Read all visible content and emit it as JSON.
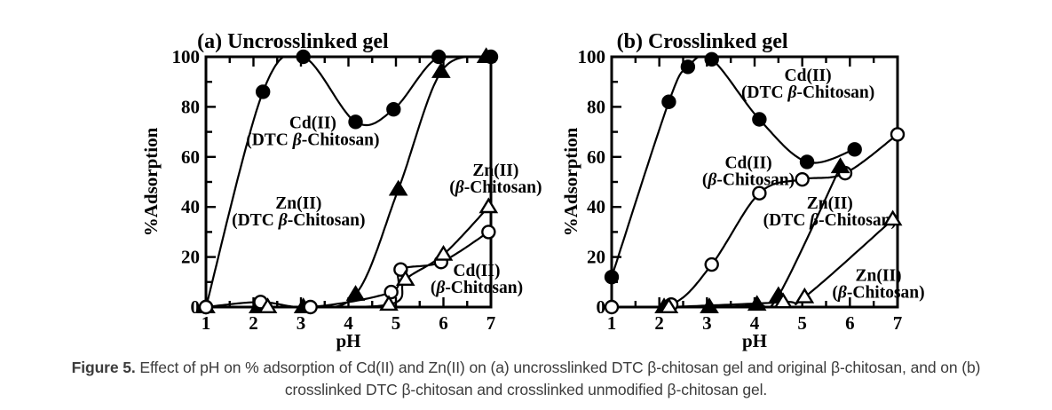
{
  "colors": {
    "ink": "#000000",
    "caption_text": "#3c3c3c",
    "background": "#ffffff"
  },
  "caption": {
    "bold": "Figure 5.",
    "line1_rest": " Effect of pH on % adsorption of Cd(II) and Zn(II) on (a) uncrosslinked DTC β-chitosan gel and original β-chitosan, and on (b)",
    "line2": "crosslinked DTC β-chitosan and crosslinked unmodified β-chitosan gel."
  },
  "chart_data": [
    {
      "type": "line",
      "title": "(a) Uncrosslinked gel",
      "xlabel": "pH",
      "ylabel": "%Adsorption",
      "xlim": [
        1,
        7
      ],
      "ylim": [
        0,
        100
      ],
      "xticks": [
        1,
        2,
        3,
        4,
        5,
        6,
        7
      ],
      "yticks": [
        0,
        20,
        40,
        60,
        80,
        100
      ],
      "xminor": 0.5,
      "yminor": 10,
      "grid": false,
      "legend": "inline-annotations",
      "series": [
        {
          "name": "Cd(II) (DTC β-Chitosan)",
          "marker": "filled-circle",
          "points": [
            [
              1,
              0
            ],
            [
              2.2,
              86
            ],
            [
              3.05,
              100
            ],
            [
              4.15,
              74
            ],
            [
              4.95,
              79
            ],
            [
              5.9,
              100
            ],
            [
              7,
              100
            ]
          ]
        },
        {
          "name": "Zn(II) (DTC β-Chitosan)",
          "marker": "filled-triangle",
          "points": [
            [
              1,
              0
            ],
            [
              2.1,
              0
            ],
            [
              3.05,
              0
            ],
            [
              4.15,
              5
            ],
            [
              5.05,
              47
            ],
            [
              5.95,
              94
            ],
            [
              6.9,
              100
            ]
          ]
        },
        {
          "name": "Cd(II) (β-Chitosan)",
          "marker": "open-circle",
          "points": [
            [
              1,
              0
            ],
            [
              2.15,
              2
            ],
            [
              3.2,
              0
            ],
            [
              4.9,
              6
            ],
            [
              5.1,
              15
            ],
            [
              5.95,
              18
            ],
            [
              6.95,
              30
            ]
          ]
        },
        {
          "name": "Zn(II) (β-Chitosan)",
          "marker": "open-triangle",
          "points": [
            [
              2.3,
              0
            ],
            [
              4.85,
              1
            ],
            [
              5.2,
              11
            ],
            [
              6,
              21
            ],
            [
              6.95,
              40
            ]
          ]
        }
      ],
      "annotations": [
        {
          "lines": [
            "Cd(II)",
            "(DTC β-Chitosan)"
          ],
          "x": 3.25,
          "y": 70
        },
        {
          "lines": [
            "Zn(II)",
            "(DTC β-Chitosan)"
          ],
          "x": 2.95,
          "y": 38
        },
        {
          "lines": [
            "Zn(II)",
            "(β-Chitosan)"
          ],
          "x": 7.1,
          "y": 51
        },
        {
          "lines": [
            "Cd(II)",
            "(β-Chitosan)"
          ],
          "x": 6.7,
          "y": 11
        }
      ]
    },
    {
      "type": "line",
      "title": "(b) Crosslinked gel",
      "xlabel": "pH",
      "ylabel": "%Adsorption",
      "xlim": [
        1,
        7
      ],
      "ylim": [
        0,
        100
      ],
      "xticks": [
        1,
        2,
        3,
        4,
        5,
        6,
        7
      ],
      "yticks": [
        0,
        20,
        40,
        60,
        80,
        100
      ],
      "xminor": 0.5,
      "yminor": 10,
      "grid": false,
      "legend": "inline-annotations",
      "series": [
        {
          "name": "Cd(II) (DTC β-Chitosan)",
          "marker": "filled-circle",
          "points": [
            [
              1,
              12
            ],
            [
              2.2,
              82
            ],
            [
              2.6,
              96
            ],
            [
              3.1,
              99
            ],
            [
              4.1,
              75
            ],
            [
              5.1,
              58
            ],
            [
              6.1,
              63
            ]
          ]
        },
        {
          "name": "Cd(II) (β-Chitosan)",
          "marker": "open-circle",
          "points": [
            [
              1,
              0
            ],
            [
              2.25,
              1
            ],
            [
              3.1,
              17
            ],
            [
              4.1,
              45.5
            ],
            [
              5,
              51
            ],
            [
              5.9,
              53.5
            ],
            [
              7,
              69
            ]
          ]
        },
        {
          "name": "Zn(II) (DTC β-Chitosan)",
          "marker": "filled-triangle",
          "points": [
            [
              2.1,
              0
            ],
            [
              3.05,
              0
            ],
            [
              4.05,
              1
            ],
            [
              4.5,
              4.5
            ],
            [
              5.8,
              56
            ]
          ]
        },
        {
          "name": "Zn(II) (β-Chitosan)",
          "marker": "open-triangle",
          "points": [
            [
              2.2,
              0
            ],
            [
              4.6,
              2
            ],
            [
              5.05,
              4
            ],
            [
              6.9,
              35
            ]
          ]
        }
      ],
      "annotations": [
        {
          "lines": [
            "Cd(II)",
            "(DTC β-Chitosan)"
          ],
          "x": 5.12,
          "y": 89
        },
        {
          "lines": [
            "Cd(II)",
            "(β-Chitosan)"
          ],
          "x": 3.87,
          "y": 54
        },
        {
          "lines": [
            "Zn(II)",
            "(DTC β-Chitosan)"
          ],
          "x": 5.58,
          "y": 38
        },
        {
          "lines": [
            "Zn(II)",
            "(β-Chitosan)"
          ],
          "x": 6.6,
          "y": 9
        }
      ]
    }
  ]
}
